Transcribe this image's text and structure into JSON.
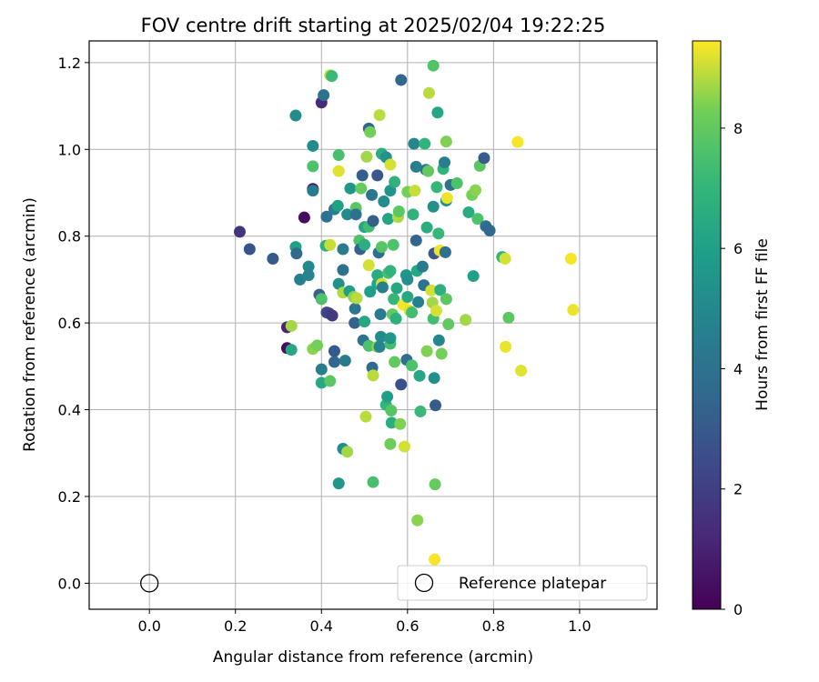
{
  "chart_data": {
    "type": "scatter",
    "title": "FOV centre drift starting at 2025/02/04 19:22:25",
    "xlabel": "Angular distance from reference (arcmin)",
    "ylabel": "Rotation from reference (arcmin)",
    "xlim": [
      -0.14,
      1.18
    ],
    "ylim": [
      -0.06,
      1.25
    ],
    "x_ticks": [
      0.0,
      0.2,
      0.4,
      0.6,
      0.8,
      1.0
    ],
    "x_tick_labels": [
      "0.0",
      "0.2",
      "0.4",
      "0.6",
      "0.8",
      "1.0"
    ],
    "y_ticks": [
      0.0,
      0.2,
      0.4,
      0.6,
      0.8,
      1.0,
      1.2
    ],
    "y_tick_labels": [
      "0.0",
      "0.2",
      "0.4",
      "0.6",
      "0.8",
      "1.0",
      "1.2"
    ],
    "grid": true,
    "colormap": "viridis",
    "colorbar": {
      "label": "Hours from first FF file",
      "range": [
        0,
        9.45
      ],
      "ticks": [
        0,
        2,
        4,
        6,
        8
      ],
      "tick_labels": [
        "0",
        "2",
        "4",
        "6",
        "8"
      ]
    },
    "legend": {
      "placement": "lower-right",
      "entries": [
        {
          "label": "Reference platepar",
          "marker": "open-circle",
          "x": 0.0,
          "y": 0.0
        }
      ]
    },
    "points": [
      [
        0.21,
        0.81,
        1.6
      ],
      [
        0.233,
        0.77,
        2.8
      ],
      [
        0.287,
        0.748,
        3.0
      ],
      [
        0.32,
        0.542,
        0.3
      ],
      [
        0.32,
        0.59,
        1.1
      ],
      [
        0.33,
        0.593,
        8.7
      ],
      [
        0.33,
        0.538,
        6.3
      ],
      [
        0.34,
        0.775,
        6.0
      ],
      [
        0.342,
        0.76,
        3.7
      ],
      [
        0.34,
        1.078,
        5.2
      ],
      [
        0.35,
        0.7,
        4.6
      ],
      [
        0.36,
        0.843,
        0.3
      ],
      [
        0.38,
        1.008,
        5.1
      ],
      [
        0.38,
        0.909,
        0.7
      ],
      [
        0.38,
        0.961,
        7.6
      ],
      [
        0.38,
        0.905,
        4.4
      ],
      [
        0.37,
        0.73,
        5.0
      ],
      [
        0.37,
        0.71,
        4.8
      ],
      [
        0.38,
        0.54,
        8.5
      ],
      [
        0.39,
        0.548,
        8.3
      ],
      [
        0.395,
        0.665,
        3.3
      ],
      [
        0.4,
        0.655,
        7.6
      ],
      [
        0.4,
        0.493,
        4.6
      ],
      [
        0.4,
        0.462,
        6.4
      ],
      [
        0.4,
        1.108,
        1.2
      ],
      [
        0.405,
        1.125,
        4.1
      ],
      [
        0.41,
        0.778,
        6.7
      ],
      [
        0.412,
        0.845,
        4.0
      ],
      [
        0.412,
        0.624,
        2.4
      ],
      [
        0.418,
        0.622,
        2.1
      ],
      [
        0.42,
        1.171,
        8.9
      ],
      [
        0.42,
        0.466,
        7.9
      ],
      [
        0.424,
        1.169,
        7.2
      ],
      [
        0.43,
        0.535,
        3.0
      ],
      [
        0.43,
        0.51,
        3.5
      ],
      [
        0.425,
        0.617,
        1.8
      ],
      [
        0.42,
        0.78,
        9.0
      ],
      [
        0.43,
        0.862,
        4.5
      ],
      [
        0.438,
        0.87,
        6.0
      ],
      [
        0.44,
        0.987,
        7.5
      ],
      [
        0.44,
        0.95,
        9.2
      ],
      [
        0.44,
        0.69,
        5.3
      ],
      [
        0.45,
        0.67,
        8.8
      ],
      [
        0.45,
        0.77,
        4.4
      ],
      [
        0.45,
        0.722,
        3.9
      ],
      [
        0.455,
        0.513,
        4.3
      ],
      [
        0.45,
        0.31,
        5.2
      ],
      [
        0.44,
        0.23,
        5.6
      ],
      [
        0.46,
        0.85,
        5.1
      ],
      [
        0.46,
        0.303,
        8.7
      ],
      [
        0.465,
        0.673,
        5.9
      ],
      [
        0.467,
        0.91,
        5.6
      ],
      [
        0.475,
        0.66,
        8.5
      ],
      [
        0.477,
        0.6,
        3.3
      ],
      [
        0.48,
        0.865,
        7.9
      ],
      [
        0.48,
        0.85,
        4.0
      ],
      [
        0.478,
        0.633,
        4.2
      ],
      [
        0.482,
        0.657,
        8.9
      ],
      [
        0.488,
        0.79,
        7.6
      ],
      [
        0.49,
        0.77,
        3.3
      ],
      [
        0.492,
        0.91,
        8.1
      ],
      [
        0.495,
        0.94,
        3.2
      ],
      [
        0.497,
        0.56,
        4.0
      ],
      [
        0.5,
        0.603,
        6.3
      ],
      [
        0.5,
        0.821,
        6.3
      ],
      [
        0.505,
        0.983,
        8.7
      ],
      [
        0.5,
        0.78,
        6.6
      ],
      [
        0.503,
        0.384,
        8.9
      ],
      [
        0.51,
        1.048,
        3.5
      ],
      [
        0.51,
        0.822,
        7.3
      ],
      [
        0.51,
        0.733,
        9.1
      ],
      [
        0.51,
        0.547,
        7.6
      ],
      [
        0.513,
        1.04,
        8.3
      ],
      [
        0.513,
        0.672,
        5.9
      ],
      [
        0.517,
        0.895,
        4.2
      ],
      [
        0.52,
        0.835,
        3.2
      ],
      [
        0.518,
        0.497,
        3.7
      ],
      [
        0.52,
        0.479,
        8.9
      ],
      [
        0.52,
        0.233,
        7.5
      ],
      [
        0.53,
        0.94,
        2.9
      ],
      [
        0.53,
        0.69,
        6.2
      ],
      [
        0.53,
        0.71,
        6.5
      ],
      [
        0.53,
        0.545,
        8.5
      ],
      [
        0.533,
        0.762,
        3.8
      ],
      [
        0.537,
        0.62,
        4.3
      ],
      [
        0.54,
        0.99,
        6.6
      ],
      [
        0.54,
        0.775,
        7.8
      ],
      [
        0.54,
        0.69,
        9.1
      ],
      [
        0.538,
        0.568,
        5.1
      ],
      [
        0.535,
        0.545,
        4.8
      ],
      [
        0.535,
        1.079,
        8.9
      ],
      [
        0.542,
        0.682,
        4.5
      ],
      [
        0.545,
        0.88,
        5.2
      ],
      [
        0.55,
        0.982,
        5.4
      ],
      [
        0.55,
        0.411,
        7.0
      ],
      [
        0.553,
        0.43,
        6.0
      ],
      [
        0.555,
        0.84,
        6.2
      ],
      [
        0.555,
        0.715,
        7.5
      ],
      [
        0.56,
        0.965,
        9.1
      ],
      [
        0.56,
        0.905,
        5.5
      ],
      [
        0.56,
        0.72,
        6.9
      ],
      [
        0.56,
        0.552,
        7.4
      ],
      [
        0.56,
        0.565,
        5.6
      ],
      [
        0.562,
        0.398,
        7.8
      ],
      [
        0.563,
        0.37,
        6.6
      ],
      [
        0.56,
        0.321,
        8.2
      ],
      [
        0.565,
        0.62,
        8.0
      ],
      [
        0.567,
        0.78,
        7.6
      ],
      [
        0.568,
        0.655,
        7.1
      ],
      [
        0.57,
        0.925,
        6.8
      ],
      [
        0.57,
        0.51,
        8.0
      ],
      [
        0.573,
        0.61,
        6.7
      ],
      [
        0.575,
        0.68,
        6.3
      ],
      [
        0.578,
        0.844,
        8.8
      ],
      [
        0.58,
        0.857,
        7.9
      ],
      [
        0.583,
        0.367,
        8.4
      ],
      [
        0.585,
        0.458,
        2.6
      ],
      [
        0.585,
        1.16,
        3.6
      ],
      [
        0.59,
        0.642,
        9.4
      ],
      [
        0.593,
        0.315,
        9.1
      ],
      [
        0.597,
        0.71,
        5.6
      ],
      [
        0.598,
        0.515,
        3.8
      ],
      [
        0.6,
        0.902,
        8.3
      ],
      [
        0.6,
        0.7,
        5.3
      ],
      [
        0.6,
        0.66,
        6.4
      ],
      [
        0.605,
        0.628,
        9.2
      ],
      [
        0.61,
        0.624,
        7.4
      ],
      [
        0.61,
        0.502,
        7.6
      ],
      [
        0.613,
        0.85,
        6.8
      ],
      [
        0.615,
        1.013,
        4.9
      ],
      [
        0.617,
        0.905,
        9.0
      ],
      [
        0.62,
        0.96,
        4.5
      ],
      [
        0.62,
        0.79,
        3.5
      ],
      [
        0.622,
        0.72,
        6.4
      ],
      [
        0.623,
        0.145,
        8.5
      ],
      [
        0.625,
        0.648,
        4.7
      ],
      [
        0.628,
        0.478,
        6.3
      ],
      [
        0.63,
        0.396,
        7.2
      ],
      [
        0.635,
        0.73,
        4.4
      ],
      [
        0.638,
        0.687,
        4.1
      ],
      [
        0.64,
        1.013,
        6.9
      ],
      [
        0.643,
        0.953,
        3.9
      ],
      [
        0.645,
        0.82,
        6.6
      ],
      [
        0.645,
        0.535,
        8.4
      ],
      [
        0.648,
        0.95,
        8.0
      ],
      [
        0.65,
        1.13,
        8.9
      ],
      [
        0.655,
        0.675,
        9.1
      ],
      [
        0.658,
        0.647,
        8.7
      ],
      [
        0.66,
        0.61,
        7.4
      ],
      [
        0.66,
        0.868,
        5.3
      ],
      [
        0.66,
        1.193,
        7.7
      ],
      [
        0.662,
        0.76,
        2.9
      ],
      [
        0.662,
        0.473,
        5.3
      ],
      [
        0.665,
        0.41,
        3.1
      ],
      [
        0.664,
        0.228,
        8.1
      ],
      [
        0.663,
        0.055,
        9.4
      ],
      [
        0.667,
        0.628,
        9.1
      ],
      [
        0.668,
        0.913,
        7.1
      ],
      [
        0.67,
        1.085,
        6.3
      ],
      [
        0.672,
        0.806,
        7.1
      ],
      [
        0.673,
        0.56,
        4.9
      ],
      [
        0.675,
        0.767,
        9.3
      ],
      [
        0.676,
        0.676,
        6.7
      ],
      [
        0.679,
        0.529,
        8.3
      ],
      [
        0.683,
        0.955,
        6.9
      ],
      [
        0.686,
        0.97,
        4.6
      ],
      [
        0.688,
        0.763,
        3.9
      ],
      [
        0.69,
        1.018,
        8.4
      ],
      [
        0.69,
        0.655,
        7.9
      ],
      [
        0.69,
        0.882,
        5.3
      ],
      [
        0.692,
        0.888,
        9.3
      ],
      [
        0.695,
        0.597,
        8.0
      ],
      [
        0.7,
        0.918,
        3.9
      ],
      [
        0.715,
        0.922,
        7.6
      ],
      [
        0.735,
        0.607,
        8.7
      ],
      [
        0.742,
        0.855,
        6.5
      ],
      [
        0.75,
        0.895,
        8.3
      ],
      [
        0.753,
        0.708,
        6.0
      ],
      [
        0.758,
        0.906,
        8.5
      ],
      [
        0.763,
        0.84,
        7.6
      ],
      [
        0.768,
        0.962,
        7.9
      ],
      [
        0.778,
        0.98,
        3.1
      ],
      [
        0.782,
        0.823,
        3.8
      ],
      [
        0.791,
        0.813,
        3.7
      ],
      [
        0.82,
        0.752,
        6.9
      ],
      [
        0.827,
        0.748,
        9.1
      ],
      [
        0.828,
        0.545,
        9.3
      ],
      [
        0.835,
        0.612,
        7.9
      ],
      [
        0.856,
        1.017,
        9.4
      ],
      [
        0.864,
        0.49,
        9.2
      ],
      [
        0.98,
        0.748,
        9.4
      ],
      [
        0.985,
        0.63,
        9.3
      ]
    ]
  }
}
